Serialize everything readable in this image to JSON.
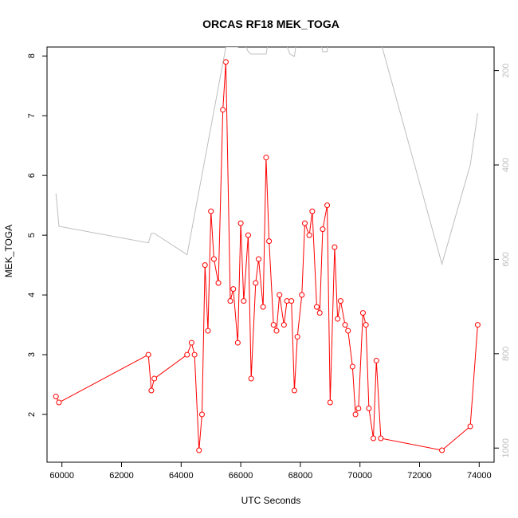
{
  "chart_data": {
    "type": "line",
    "title": "ORCAS RF18 MEK_TOGA",
    "xlabel": "UTC Seconds",
    "ylabel": "MEK_TOGA",
    "xlim": [
      59500,
      74500
    ],
    "ylim": [
      1.2,
      8.15
    ],
    "x_ticks": [
      60000,
      62000,
      64000,
      66000,
      68000,
      70000,
      72000,
      74000
    ],
    "y_ticks": [
      2,
      3,
      4,
      5,
      6,
      7,
      8
    ],
    "right_ticks": [
      200,
      400,
      600,
      800,
      1000
    ],
    "right_lim": [
      1030,
      150
    ],
    "grid": false,
    "series": [
      {
        "color": "#ff0000",
        "axis": "left",
        "points": [
          [
            59800,
            2.3
          ],
          [
            59900,
            2.2
          ],
          [
            62900,
            3.0
          ],
          [
            63000,
            2.4
          ],
          [
            63100,
            2.6
          ],
          [
            64200,
            3.0
          ],
          [
            64350,
            3.2
          ],
          [
            64450,
            3.0
          ],
          [
            64600,
            1.4
          ],
          [
            64700,
            2.0
          ],
          [
            64800,
            4.5
          ],
          [
            64900,
            3.4
          ],
          [
            65000,
            5.4
          ],
          [
            65100,
            4.6
          ],
          [
            65250,
            4.2
          ],
          [
            65400,
            7.1
          ],
          [
            65500,
            7.9
          ],
          [
            65650,
            3.9
          ],
          [
            65750,
            4.1
          ],
          [
            65900,
            3.2
          ],
          [
            66000,
            5.2
          ],
          [
            66100,
            3.9
          ],
          [
            66250,
            5.0
          ],
          [
            66350,
            2.6
          ],
          [
            66500,
            4.2
          ],
          [
            66600,
            4.6
          ],
          [
            66750,
            3.8
          ],
          [
            66850,
            6.3
          ],
          [
            66950,
            4.9
          ],
          [
            67100,
            3.5
          ],
          [
            67200,
            3.4
          ],
          [
            67300,
            4.0
          ],
          [
            67450,
            3.5
          ],
          [
            67550,
            3.9
          ],
          [
            67700,
            3.9
          ],
          [
            67800,
            2.4
          ],
          [
            67900,
            3.3
          ],
          [
            68050,
            4.0
          ],
          [
            68150,
            5.2
          ],
          [
            68300,
            5.0
          ],
          [
            68400,
            5.4
          ],
          [
            68550,
            3.8
          ],
          [
            68650,
            3.7
          ],
          [
            68750,
            5.1
          ],
          [
            68900,
            5.5
          ],
          [
            69000,
            2.2
          ],
          [
            69150,
            4.8
          ],
          [
            69250,
            3.6
          ],
          [
            69350,
            3.9
          ],
          [
            69500,
            3.5
          ],
          [
            69600,
            3.4
          ],
          [
            69750,
            2.8
          ],
          [
            69850,
            2.0
          ],
          [
            69950,
            2.1
          ],
          [
            70100,
            3.7
          ],
          [
            70200,
            3.5
          ],
          [
            70300,
            2.1
          ],
          [
            70450,
            1.6
          ],
          [
            70550,
            2.9
          ],
          [
            70700,
            1.6
          ],
          [
            72750,
            1.4
          ],
          [
            73700,
            1.8
          ],
          [
            73950,
            3.5
          ]
        ]
      },
      {
        "color": "#bebebe",
        "axis": "right",
        "points": [
          [
            59800,
            460
          ],
          [
            59900,
            530
          ],
          [
            62900,
            565
          ],
          [
            63000,
            545
          ],
          [
            63100,
            545
          ],
          [
            64200,
            590
          ],
          [
            65500,
            150
          ],
          [
            65900,
            150
          ],
          [
            66000,
            120
          ],
          [
            66250,
            160
          ],
          [
            66350,
            165
          ],
          [
            66850,
            165
          ],
          [
            66950,
            130
          ],
          [
            67450,
            130
          ],
          [
            67650,
            165
          ],
          [
            67800,
            170
          ],
          [
            67950,
            100
          ],
          [
            68550,
            100
          ],
          [
            68750,
            160
          ],
          [
            68900,
            160
          ],
          [
            69000,
            60
          ],
          [
            70200,
            60
          ],
          [
            70700,
            140
          ],
          [
            72750,
            610
          ],
          [
            73700,
            400
          ],
          [
            73950,
            290
          ]
        ]
      }
    ]
  }
}
